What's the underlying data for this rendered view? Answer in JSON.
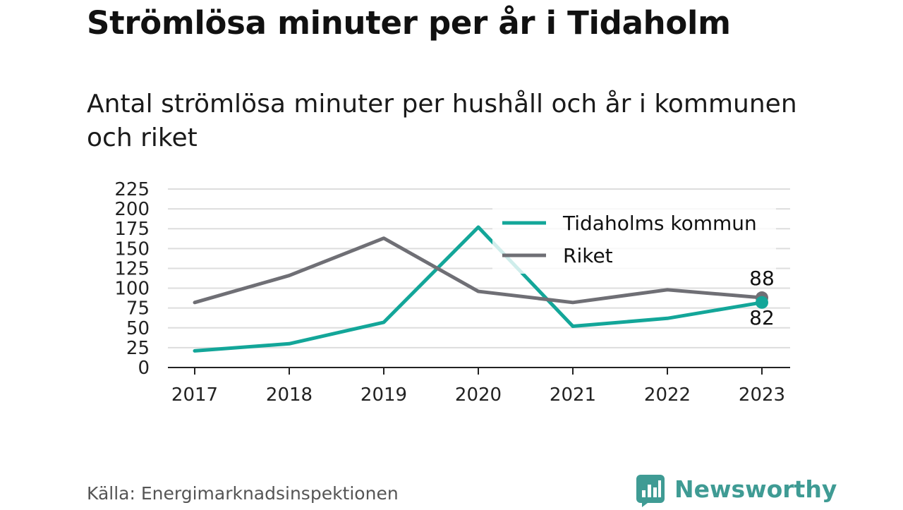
{
  "title": "Strömlösa minuter per år i Tidaholm",
  "subtitle": "Antal strömlösa minuter per hushåll och år i kommunen och riket",
  "source": "Källa: Energimarknadsinspektionen",
  "brand": "Newsworthy",
  "colors": {
    "tidaholm": "#13a699",
    "riket": "#6f6f75",
    "grid": "#dddddd",
    "brand": "#3f9b94"
  },
  "chart_data": {
    "type": "line",
    "x": [
      "2017",
      "2018",
      "2019",
      "2020",
      "2021",
      "2022",
      "2023"
    ],
    "ylim": [
      0,
      225
    ],
    "yticks": [
      0,
      25,
      50,
      75,
      100,
      125,
      150,
      175,
      200,
      225
    ],
    "grid": true,
    "legend_position": "top-right",
    "series": [
      {
        "name": "Tidaholms kommun",
        "color": "#13a699",
        "values": [
          21,
          30,
          57,
          177,
          52,
          62,
          82
        ],
        "end_label": "82"
      },
      {
        "name": "Riket",
        "color": "#6f6f75",
        "values": [
          82,
          116,
          163,
          96,
          82,
          98,
          88
        ],
        "end_label": "88"
      }
    ]
  }
}
